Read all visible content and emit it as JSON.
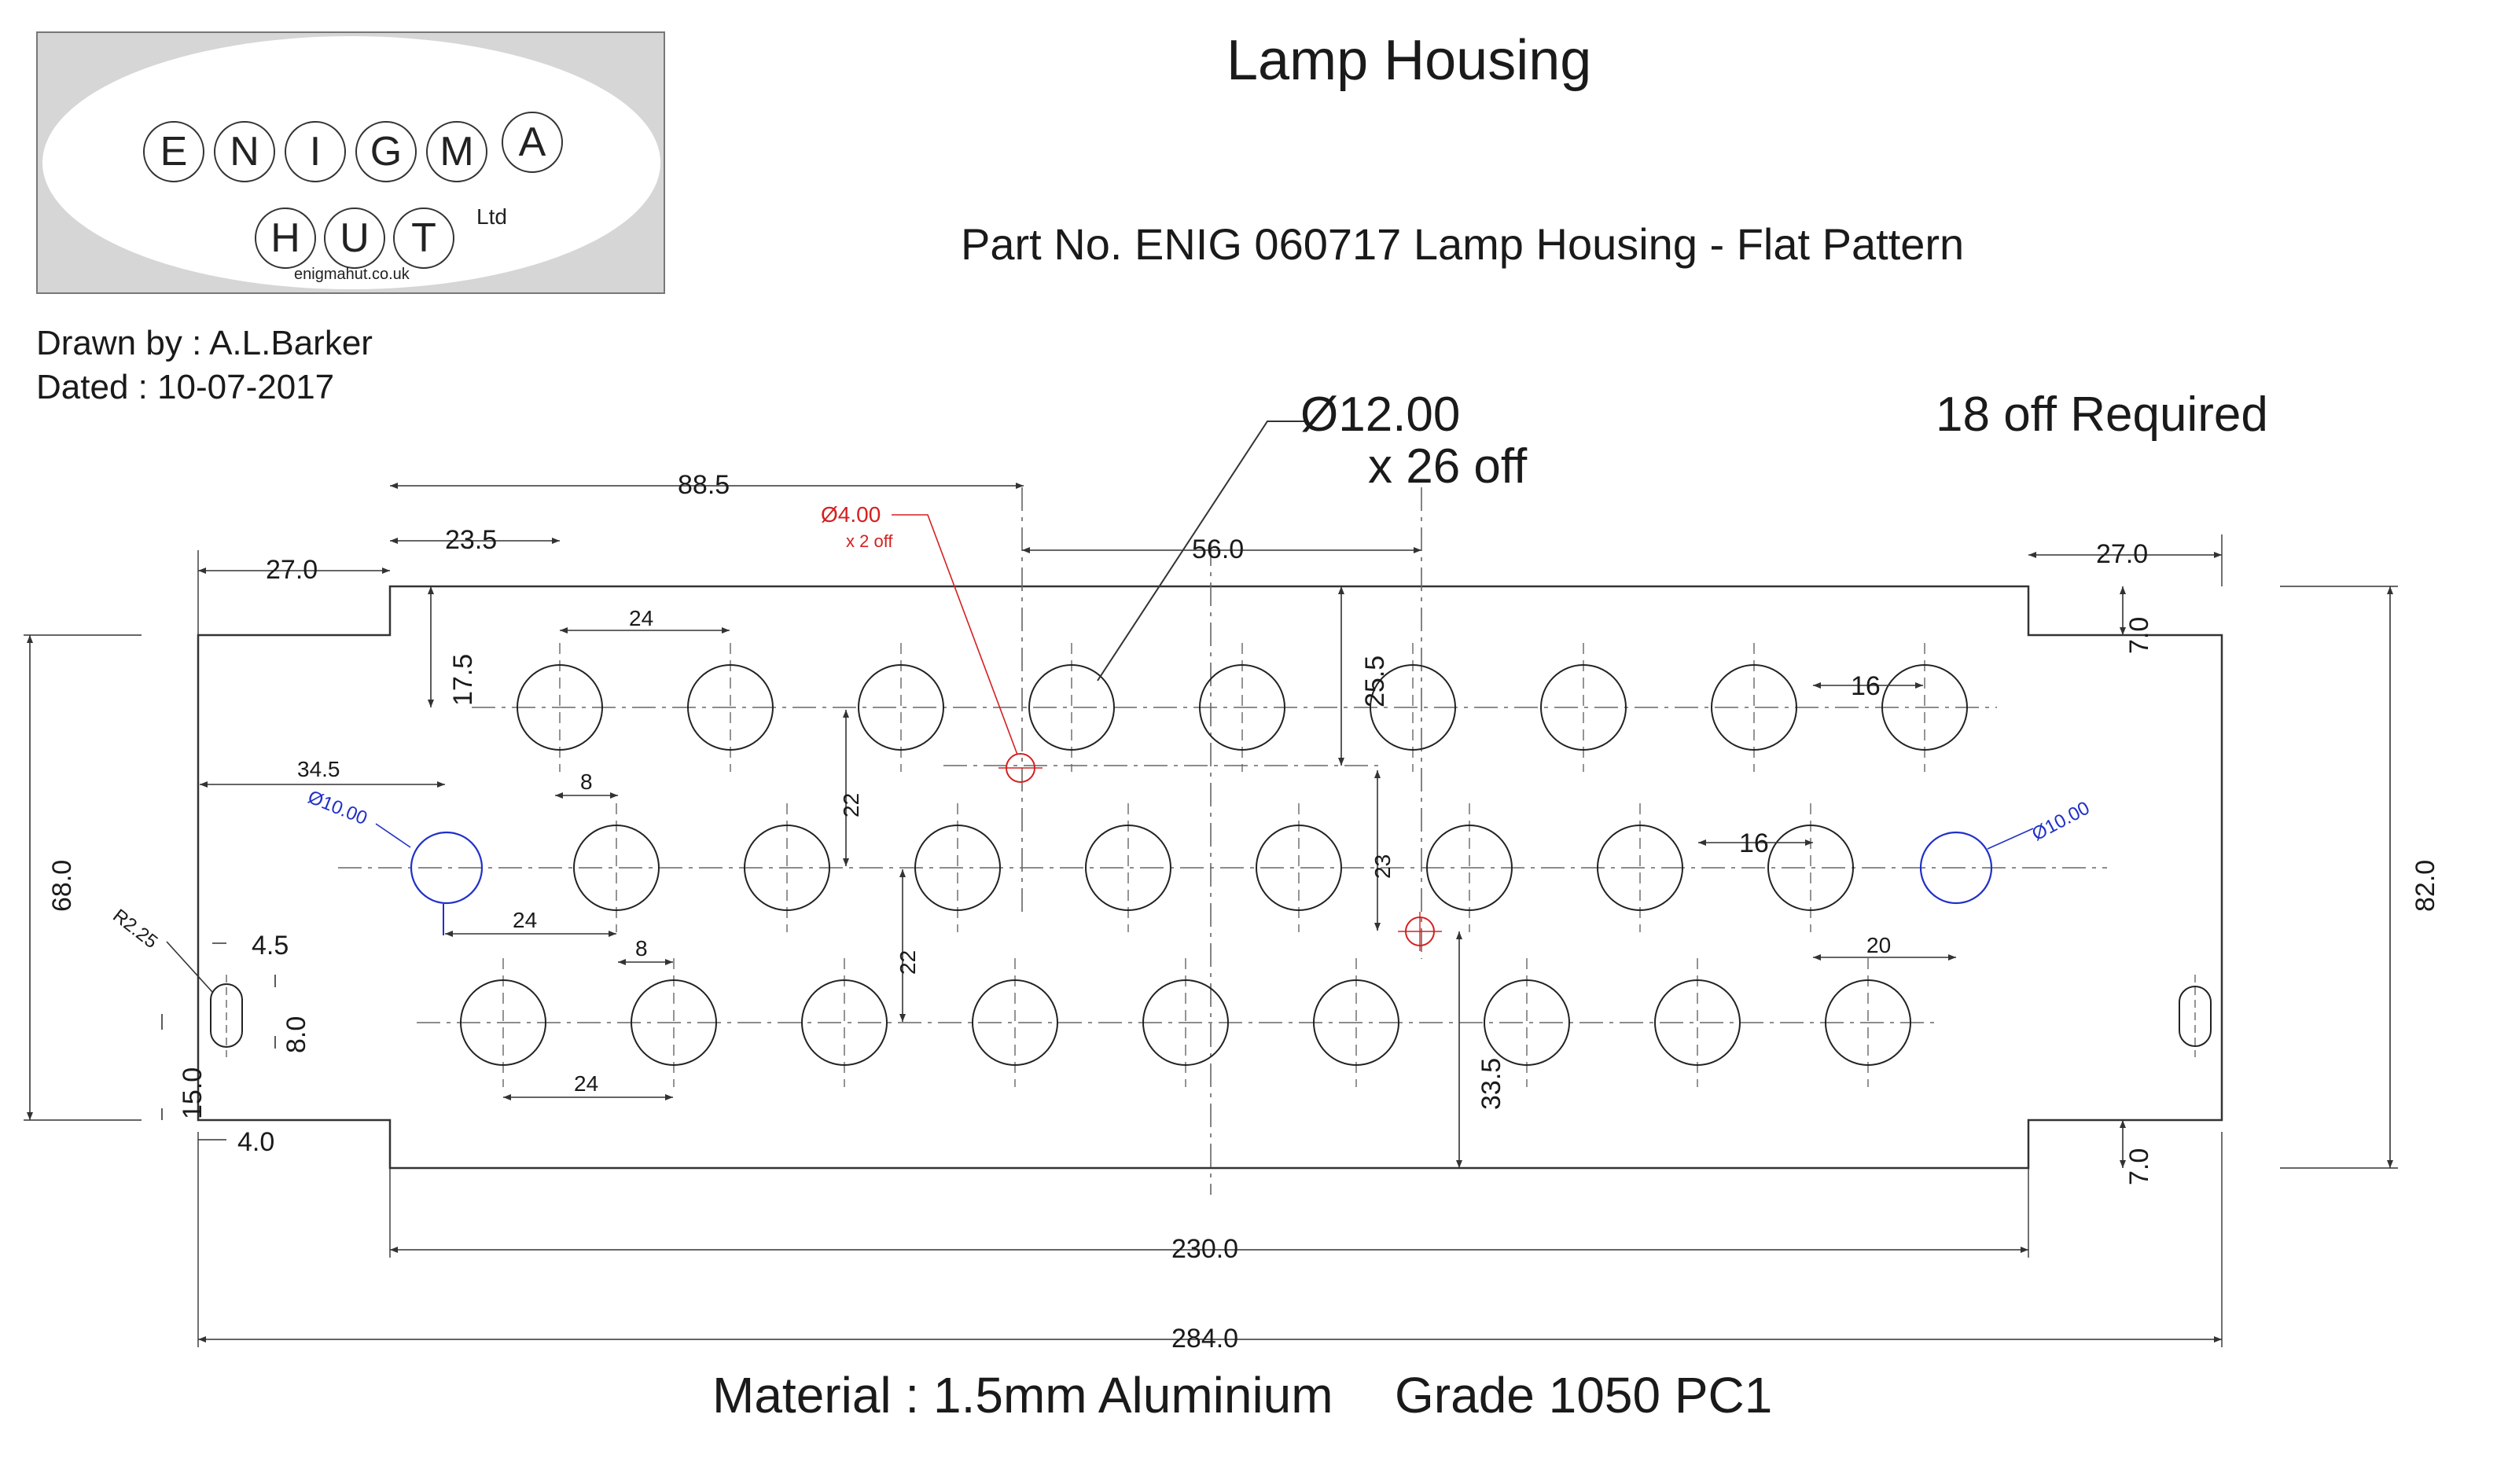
{
  "title": "Lamp Housing",
  "part_number": "Part No. ENIG 060717 Lamp Housing - Flat Pattern",
  "drawn_by": "Drawn by :  A.L.Barker",
  "dated": "Dated : 10-07-2017",
  "quantity_required": "18 off Required",
  "material": "Material :  1.5mm Aluminium",
  "material_grade": "Grade 1050 PC1",
  "logo": {
    "letters_top": [
      "E",
      "N",
      "I",
      "G",
      "M",
      "A"
    ],
    "letters_bottom": [
      "H",
      "U",
      "T"
    ],
    "suffix": "Ltd",
    "url": "enigmahut.co.uk"
  },
  "hole_callout": {
    "diameter": "Ø12.00",
    "quantity": "x 26 off"
  },
  "small_hole_callout": {
    "diameter": "Ø4.00",
    "quantity": "x 2 off",
    "color": "#d42020"
  },
  "locating_hole_callout": {
    "diameter": "Ø10.00",
    "color": "#2030c8"
  },
  "dimensions": {
    "d88_5": "88.5",
    "d23_5": "23.5",
    "d27_left": "27.0",
    "d56": "56.0",
    "d27_right": "27.0",
    "d24_top": "24",
    "d17_5": "17.5",
    "d34_5": "34.5",
    "d8_top": "8",
    "d22_a": "22",
    "d25_5": "25.5",
    "d23": "23",
    "d16_top": "16",
    "d16_mid": "16",
    "d7_top": "7.0",
    "d68": "68.0",
    "d82": "82.0",
    "r2_25": "R2.25",
    "d4_5": "4.5",
    "d24_mid": "24",
    "d8_mid": "8",
    "d22_b": "22",
    "d20": "20",
    "d8_0": "8.0",
    "d15": "15.0",
    "d24_bottom": "24",
    "d33_5": "33.5",
    "d4_0": "4.0",
    "d7_bottom": "7.0",
    "d230": "230.0",
    "d284": "284.0"
  },
  "colors": {
    "line": "#333333",
    "red": "#d42020",
    "blue": "#2030c8",
    "logo_bg": "#d6d6d6"
  }
}
